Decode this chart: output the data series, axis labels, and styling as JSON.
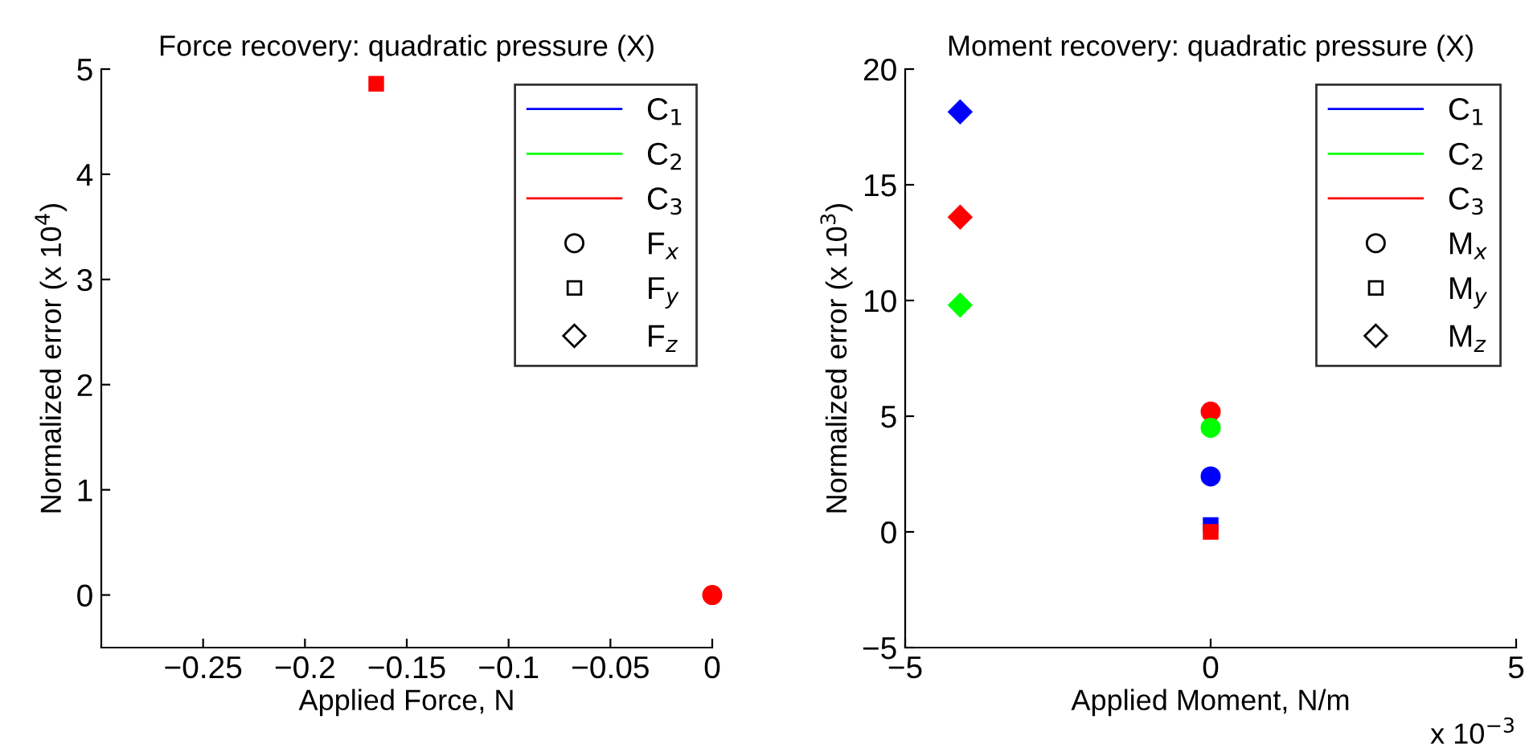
{
  "chart_data": [
    {
      "type": "scatter",
      "title": "Force recovery: quadratic pressure (X)",
      "xlabel": "Applied Force, N",
      "ylabel": "Normalized error (x 10$^{4}$)",
      "xlim": [
        -0.3,
        0
      ],
      "xticks": [
        {
          "value": -0.25,
          "label": "−0.25"
        },
        {
          "value": -0.2,
          "label": "−0.2"
        },
        {
          "value": -0.15,
          "label": "−0.15"
        },
        {
          "value": -0.1,
          "label": "−0.1"
        },
        {
          "value": -0.05,
          "label": "−0.05"
        },
        0
      ],
      "ylim": [
        -0.5,
        5
      ],
      "yticks": [
        0,
        1,
        2,
        3,
        4,
        5
      ],
      "grid": false,
      "legend": "top right",
      "series": [
        {
          "color": "#ff0000",
          "marker": "square",
          "x": [
            -0.165
          ],
          "values": [
            4.86
          ]
        },
        {
          "color": "#ff0000",
          "marker": "circle",
          "x": [
            0
          ],
          "values": [
            0
          ]
        },
        {
          "type": "line",
          "name": "C$_{1}$",
          "color": "#0000ff"
        },
        {
          "type": "line",
          "name": "C$_{2}$",
          "color": "#00ff00"
        },
        {
          "type": "line",
          "name": "C$_{3}$",
          "color": "#ff0000"
        },
        {
          "name": "F$_{x}$",
          "color": "#000000",
          "marker": "circle"
        },
        {
          "name": "F$_{y}$",
          "color": "#000000",
          "marker": "square"
        },
        {
          "name": "F$_{z}$",
          "color": "#000000",
          "marker": "diamond"
        }
      ]
    },
    {
      "type": "scatter",
      "title": "Moment recovery: quadratic pressure (X)",
      "xlabel": "Applied Moment, N/m",
      "ylabel": "Normalized error (x 10$^{3}$)",
      "annotations": [
        "x 10$^{−3}$"
      ],
      "xlim": [
        -5,
        5
      ],
      "xticks": [
        {
          "value": -5,
          "label": "−5"
        },
        0,
        5
      ],
      "ylim": [
        -5,
        20
      ],
      "yticks": [
        {
          "value": -5,
          "label": "−5"
        },
        0,
        5,
        10,
        15,
        20
      ],
      "grid": false,
      "legend": "top right",
      "series": [
        {
          "color": "#0000ff",
          "marker": "diamond",
          "x": [
            -4.1
          ],
          "values": [
            18.15
          ]
        },
        {
          "color": "#ff0000",
          "marker": "diamond",
          "x": [
            -4.1
          ],
          "values": [
            13.6
          ]
        },
        {
          "color": "#00ff00",
          "marker": "diamond",
          "x": [
            -4.1
          ],
          "values": [
            9.8
          ]
        },
        {
          "color": "#ff0000",
          "marker": "circle",
          "x": [
            0
          ],
          "values": [
            5.2
          ]
        },
        {
          "color": "#00ff00",
          "marker": "circle",
          "x": [
            0
          ],
          "values": [
            4.5
          ]
        },
        {
          "color": "#0000ff",
          "marker": "circle",
          "x": [
            0
          ],
          "values": [
            2.4
          ]
        },
        {
          "color": "#0000ff",
          "marker": "square",
          "x": [
            0
          ],
          "values": [
            0.3
          ]
        },
        {
          "color": "#ff0000",
          "marker": "square",
          "x": [
            0
          ],
          "values": [
            0
          ]
        },
        {
          "type": "line",
          "name": "C$_{1}$",
          "color": "#0000ff"
        },
        {
          "type": "line",
          "name": "C$_{2}$",
          "color": "#00ff00"
        },
        {
          "type": "line",
          "name": "C$_{3}$",
          "color": "#ff0000"
        },
        {
          "name": "M$_{x}$",
          "color": "#000000",
          "marker": "circle"
        },
        {
          "name": "M$_{y}$",
          "color": "#000000",
          "marker": "square"
        },
        {
          "name": "M$_{z}$",
          "color": "#000000",
          "marker": "diamond"
        }
      ]
    }
  ]
}
